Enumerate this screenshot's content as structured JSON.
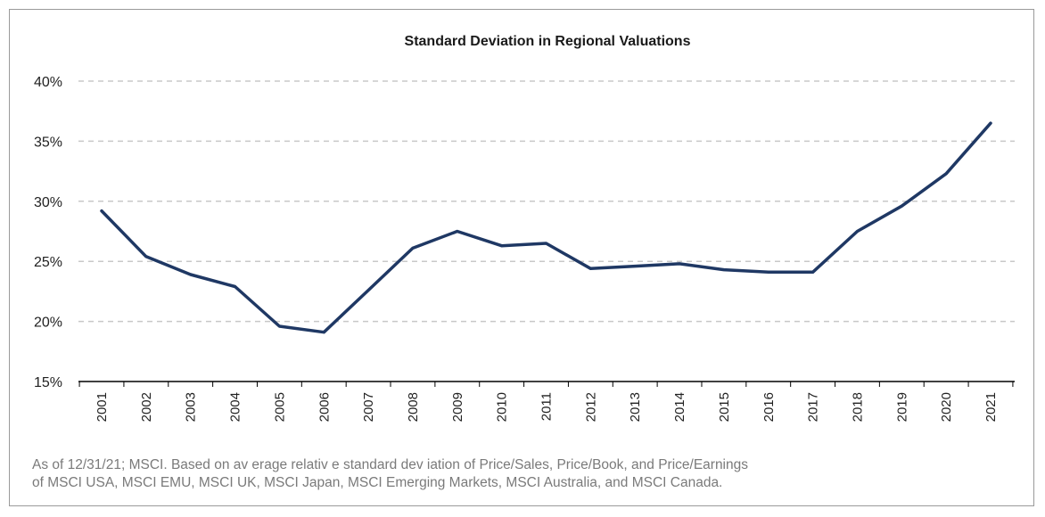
{
  "chart_data": {
    "type": "line",
    "title": "Standard Deviation in Regional Valuations",
    "xlabel": "",
    "ylabel": "",
    "x": [
      "2001",
      "2002",
      "2003",
      "2004",
      "2005",
      "2006",
      "2007",
      "2008",
      "2009",
      "2010",
      "2011",
      "2012",
      "2013",
      "2014",
      "2015",
      "2016",
      "2017",
      "2018",
      "2019",
      "2020",
      "2021"
    ],
    "series": [
      {
        "values": [
          29.2,
          25.4,
          23.9,
          22.9,
          19.6,
          19.1,
          22.6,
          26.1,
          27.5,
          26.3,
          26.5,
          24.4,
          24.6,
          24.8,
          24.3,
          24.1,
          24.1,
          27.5,
          29.6,
          32.3,
          36.5
        ]
      }
    ],
    "ylim": [
      15,
      40
    ],
    "yticks": [
      "15%",
      "20%",
      "25%",
      "30%",
      "35%",
      "40%"
    ],
    "grid": "horizontal dashed",
    "line_color": "#1f3864",
    "footnote_lines": [
      "As of 12/31/21; MSCI.  Based on av erage relativ e standard dev iation of Price/Sales, Price/Book, and Price/Earnings",
      "of MSCI USA, MSCI EMU, MSCI UK, MSCI Japan, MSCI Emerging Markets, MSCI Australia, and MSCI Canada."
    ]
  }
}
